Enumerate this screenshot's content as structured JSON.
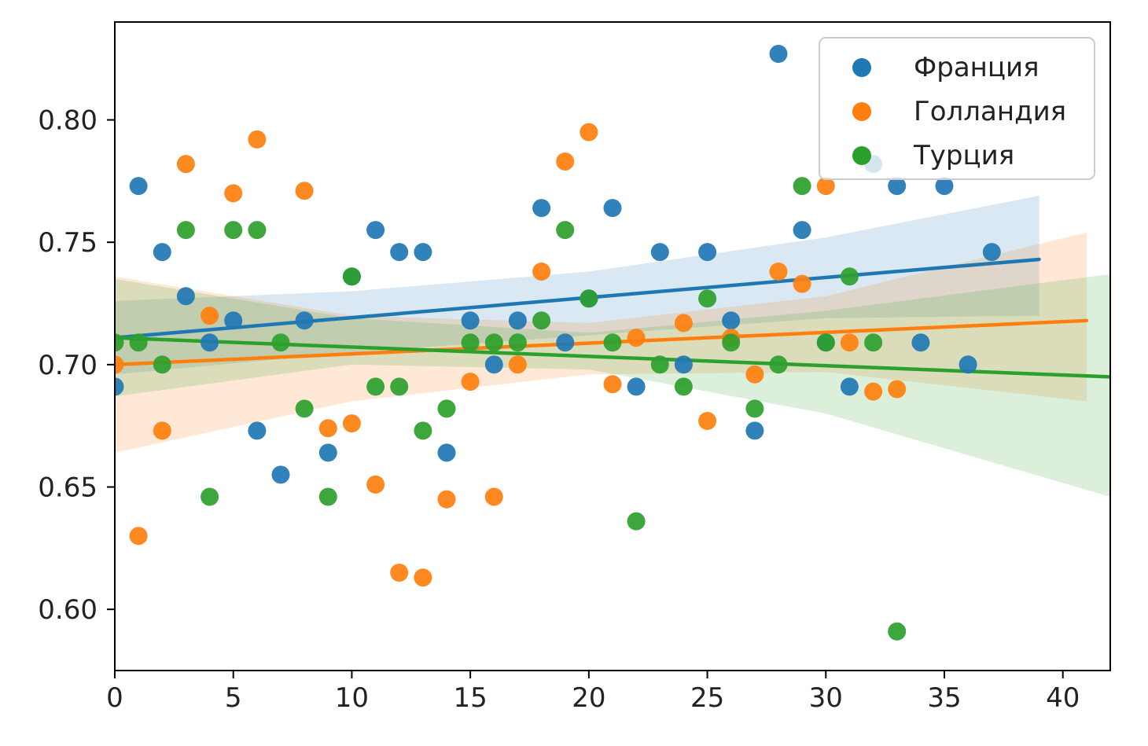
{
  "chart_data": {
    "type": "scatter",
    "title": "",
    "xlabel": "",
    "ylabel": "",
    "xlim": [
      0,
      42
    ],
    "ylim": [
      0.575,
      0.84
    ],
    "x_ticks": [
      "0",
      "5",
      "10",
      "15",
      "20",
      "25",
      "30",
      "35",
      "40"
    ],
    "y_ticks": [
      "0.60",
      "0.65",
      "0.70",
      "0.75",
      "0.80"
    ],
    "grid": false,
    "legend_position": "top-right",
    "series": [
      {
        "name": "Франция",
        "color": "#1f77b4",
        "points": [
          [
            0,
            0.691
          ],
          [
            1,
            0.773
          ],
          [
            2,
            0.746
          ],
          [
            3,
            0.728
          ],
          [
            4,
            0.709
          ],
          [
            5,
            0.718
          ],
          [
            6,
            0.673
          ],
          [
            7,
            0.655
          ],
          [
            8,
            0.718
          ],
          [
            9,
            0.664
          ],
          [
            10,
            0.736
          ],
          [
            11,
            0.755
          ],
          [
            12,
            0.746
          ],
          [
            13,
            0.746
          ],
          [
            14,
            0.664
          ],
          [
            15,
            0.718
          ],
          [
            16,
            0.7
          ],
          [
            17,
            0.718
          ],
          [
            18,
            0.764
          ],
          [
            19,
            0.709
          ],
          [
            20,
            0.727
          ],
          [
            21,
            0.764
          ],
          [
            22,
            0.691
          ],
          [
            23,
            0.746
          ],
          [
            24,
            0.7
          ],
          [
            25,
            0.746
          ],
          [
            26,
            0.718
          ],
          [
            27,
            0.673
          ],
          [
            28,
            0.827
          ],
          [
            29,
            0.755
          ],
          [
            30,
            0.709
          ],
          [
            31,
            0.691
          ],
          [
            32,
            0.782
          ],
          [
            33,
            0.773
          ],
          [
            34,
            0.709
          ],
          [
            35,
            0.773
          ],
          [
            36,
            0.7
          ],
          [
            37,
            0.746
          ]
        ],
        "trend": {
          "x": [
            0,
            39
          ],
          "y": [
            0.711,
            0.743
          ]
        },
        "band_upper": [
          [
            0,
            0.726
          ],
          [
            10,
            0.73
          ],
          [
            20,
            0.738
          ],
          [
            30,
            0.752
          ],
          [
            39,
            0.769
          ]
        ],
        "band_lower": [
          [
            0,
            0.696
          ],
          [
            10,
            0.705
          ],
          [
            20,
            0.712
          ],
          [
            30,
            0.719
          ],
          [
            39,
            0.72
          ]
        ]
      },
      {
        "name": "Голландия",
        "color": "#ff7f0e",
        "points": [
          [
            0,
            0.7
          ],
          [
            1,
            0.63
          ],
          [
            2,
            0.673
          ],
          [
            3,
            0.782
          ],
          [
            4,
            0.72
          ],
          [
            5,
            0.77
          ],
          [
            6,
            0.792
          ],
          [
            8,
            0.771
          ],
          [
            9,
            0.674
          ],
          [
            10,
            0.676
          ],
          [
            11,
            0.651
          ],
          [
            12,
            0.615
          ],
          [
            13,
            0.613
          ],
          [
            14,
            0.645
          ],
          [
            15,
            0.693
          ],
          [
            16,
            0.646
          ],
          [
            17,
            0.7
          ],
          [
            18,
            0.738
          ],
          [
            19,
            0.783
          ],
          [
            20,
            0.795
          ],
          [
            21,
            0.692
          ],
          [
            22,
            0.711
          ],
          [
            24,
            0.717
          ],
          [
            25,
            0.677
          ],
          [
            26,
            0.711
          ],
          [
            27,
            0.696
          ],
          [
            28,
            0.738
          ],
          [
            29,
            0.733
          ],
          [
            30,
            0.773
          ],
          [
            31,
            0.709
          ],
          [
            32,
            0.689
          ],
          [
            33,
            0.69
          ]
        ],
        "trend": {
          "x": [
            0,
            41
          ],
          "y": [
            0.7,
            0.718
          ]
        },
        "band_upper": [
          [
            0,
            0.736
          ],
          [
            10,
            0.72
          ],
          [
            20,
            0.717
          ],
          [
            30,
            0.728
          ],
          [
            41,
            0.754
          ]
        ],
        "band_lower": [
          [
            0,
            0.664
          ],
          [
            10,
            0.685
          ],
          [
            20,
            0.696
          ],
          [
            30,
            0.697
          ],
          [
            41,
            0.685
          ]
        ]
      },
      {
        "name": "Турция",
        "color": "#2ca02c",
        "points": [
          [
            0,
            0.709
          ],
          [
            1,
            0.709
          ],
          [
            2,
            0.7
          ],
          [
            3,
            0.755
          ],
          [
            4,
            0.646
          ],
          [
            5,
            0.755
          ],
          [
            6,
            0.755
          ],
          [
            7,
            0.709
          ],
          [
            8,
            0.682
          ],
          [
            9,
            0.646
          ],
          [
            10,
            0.736
          ],
          [
            11,
            0.691
          ],
          [
            12,
            0.691
          ],
          [
            13,
            0.673
          ],
          [
            14,
            0.682
          ],
          [
            15,
            0.709
          ],
          [
            16,
            0.709
          ],
          [
            17,
            0.709
          ],
          [
            18,
            0.718
          ],
          [
            19,
            0.755
          ],
          [
            20,
            0.727
          ],
          [
            21,
            0.709
          ],
          [
            22,
            0.636
          ],
          [
            23,
            0.7
          ],
          [
            24,
            0.691
          ],
          [
            25,
            0.727
          ],
          [
            26,
            0.709
          ],
          [
            27,
            0.682
          ],
          [
            28,
            0.7
          ],
          [
            29,
            0.773
          ],
          [
            30,
            0.709
          ],
          [
            31,
            0.736
          ],
          [
            32,
            0.709
          ],
          [
            33,
            0.591
          ]
        ],
        "trend": {
          "x": [
            0,
            42
          ],
          "y": [
            0.711,
            0.695
          ]
        },
        "band_upper": [
          [
            0,
            0.735
          ],
          [
            10,
            0.719
          ],
          [
            20,
            0.713
          ],
          [
            30,
            0.722
          ],
          [
            42,
            0.737
          ]
        ],
        "band_lower": [
          [
            0,
            0.687
          ],
          [
            10,
            0.7
          ],
          [
            20,
            0.698
          ],
          [
            30,
            0.68
          ],
          [
            42,
            0.646
          ]
        ]
      }
    ]
  }
}
